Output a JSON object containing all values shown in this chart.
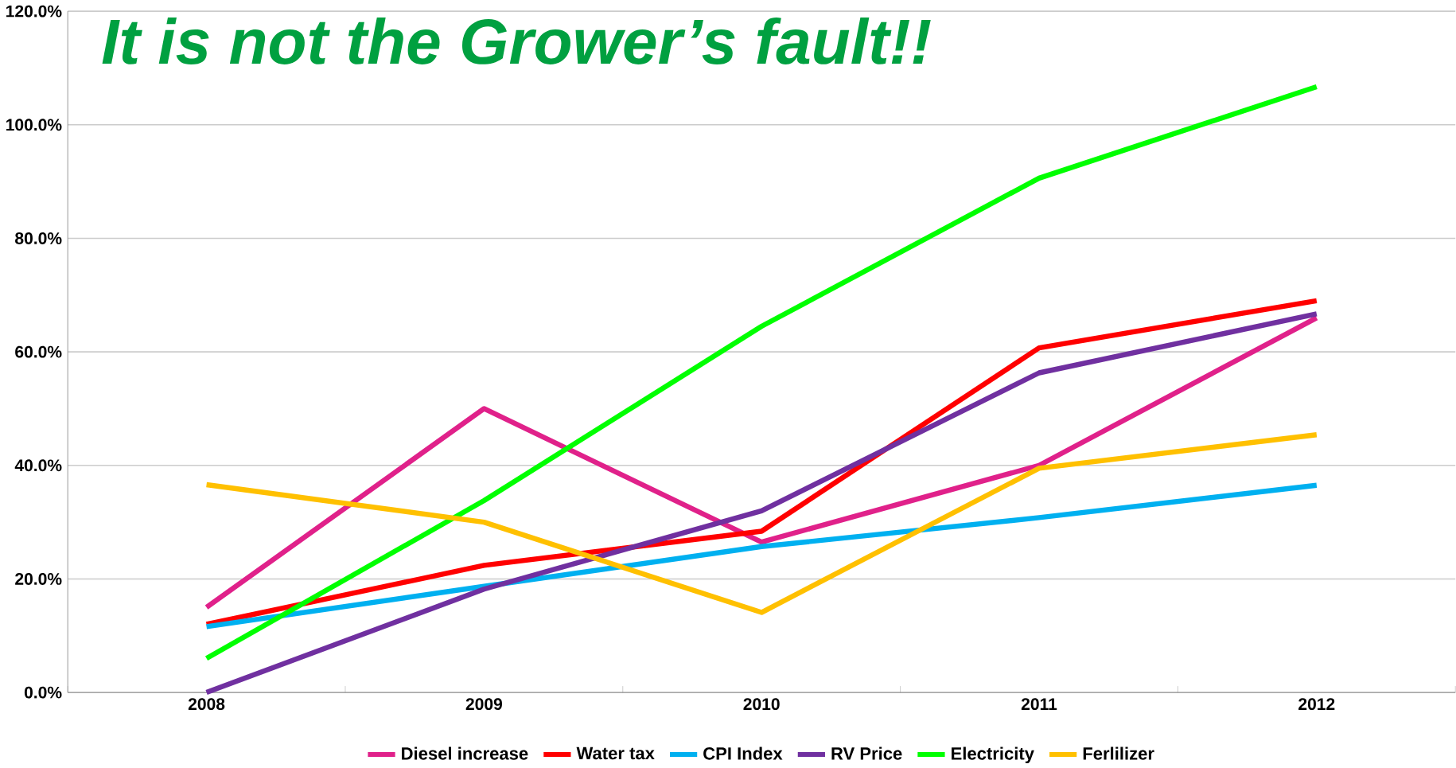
{
  "chart_data": {
    "type": "line",
    "title": "It is not the Grower’s fault!!",
    "categories": [
      "2008",
      "2009",
      "2010",
      "2011",
      "2012"
    ],
    "series": [
      {
        "name": "Diesel increase",
        "color": "#e0218a",
        "values": [
          15,
          50,
          26.5,
          40,
          66
        ]
      },
      {
        "name": "Water tax",
        "color": "#ff0000",
        "values": [
          12,
          22.4,
          28.4,
          60.7,
          69
        ]
      },
      {
        "name": "CPI Index",
        "color": "#00b0f0",
        "values": [
          11.6,
          18.7,
          25.7,
          30.8,
          36.5
        ]
      },
      {
        "name": "RV Price",
        "color": "#7030a0",
        "values": [
          0,
          18.2,
          32,
          56.3,
          66.7
        ]
      },
      {
        "name": "Electricity",
        "color": "#00ff00",
        "values": [
          6,
          33.8,
          64.5,
          90.6,
          106.7
        ]
      },
      {
        "name": "Ferlilizer",
        "color": "#ffc000",
        "values": [
          36.6,
          30,
          14.1,
          39.5,
          45.4
        ]
      }
    ],
    "ylim": [
      0,
      120
    ],
    "yticks": [
      {
        "value": 0,
        "label": "0.0%"
      },
      {
        "value": 20,
        "label": "20.0%"
      },
      {
        "value": 40,
        "label": "40.0%"
      },
      {
        "value": 60,
        "label": "60.0%"
      },
      {
        "value": 80,
        "label": "80.0%"
      },
      {
        "value": 100,
        "label": "100.0%"
      },
      {
        "value": 120,
        "label": "120.0%"
      }
    ],
    "grid": "y",
    "legend": "bottom",
    "marker": "none",
    "line_style": "solid"
  }
}
